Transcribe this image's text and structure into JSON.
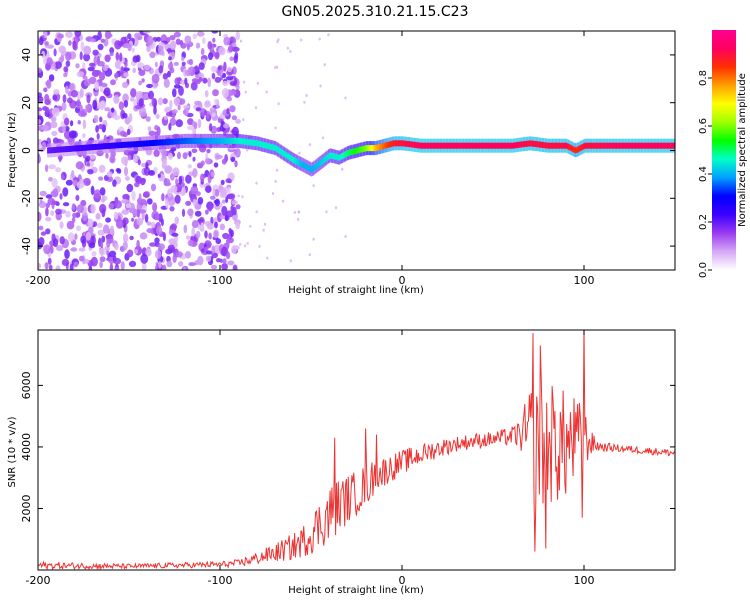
{
  "figure_title": "GN05.2025.310.21.15.C23",
  "chart_data": [
    {
      "type": "heatmap",
      "title": "GN05.2025.310.21.15.C23",
      "xlabel": "Height of straight line (km)",
      "ylabel": "Frequency (Hz)",
      "xlim": [
        -200,
        150
      ],
      "ylim": [
        -50,
        50
      ],
      "xticks": [
        -200,
        -100,
        0,
        100
      ],
      "yticks": [
        -40,
        -20,
        0,
        20,
        40
      ],
      "xtick_labels": [
        "-200",
        "-100",
        "0",
        "100"
      ],
      "ytick_labels": [
        "-40",
        "-20",
        "0",
        "20",
        "40"
      ],
      "colorbar": {
        "label": "Normalized spectral amplitude",
        "range": [
          0,
          1
        ],
        "ticks": [
          0.0,
          0.2,
          0.4,
          0.6,
          0.8
        ],
        "tick_labels": [
          "0.0",
          "0.2",
          "0.4",
          "0.6",
          "0.8"
        ],
        "colors": [
          "#ffffff",
          "#d6a8f5",
          "#9a3cf0",
          "#3c00ff",
          "#0000ff",
          "#00a0ff",
          "#00ffc8",
          "#00ff00",
          "#a0ff00",
          "#ffff00",
          "#ffa000",
          "#ff3000",
          "#ff0060",
          "#ff0090"
        ]
      },
      "ridge": {
        "x": [
          -195,
          -160,
          -140,
          -120,
          -100,
          -90,
          -80,
          -70,
          -60,
          -55,
          -50,
          -45,
          -40,
          -35,
          -30,
          -25,
          -20,
          -15,
          -10,
          -5,
          0,
          10,
          20,
          40,
          60,
          70,
          80,
          90,
          95,
          100,
          120,
          150
        ],
        "frequency": [
          0,
          2,
          3,
          4,
          4,
          4,
          3,
          1,
          -4,
          -6,
          -8,
          -5,
          -2,
          -3,
          -1,
          0,
          1,
          1,
          2,
          3,
          3,
          2,
          2,
          2,
          2,
          3,
          2,
          2,
          0,
          2,
          2,
          2
        ],
        "amplitude": [
          0.2,
          0.25,
          0.3,
          0.35,
          0.4,
          0.45,
          0.45,
          0.45,
          0.45,
          0.4,
          0.4,
          0.42,
          0.45,
          0.45,
          0.5,
          0.55,
          0.6,
          0.75,
          0.82,
          0.88,
          0.9,
          0.92,
          0.92,
          0.92,
          0.92,
          0.9,
          0.9,
          0.9,
          0.85,
          0.9,
          0.92,
          0.92
        ]
      },
      "noise_region_x": [
        -200,
        -90
      ],
      "noise_amplitude_range": [
        0.05,
        0.2
      ]
    },
    {
      "type": "line",
      "xlabel": "Height of straight line (km)",
      "ylabel": "SNR (10 * v/v)",
      "xlim": [
        -200,
        150
      ],
      "ylim": [
        0,
        7800
      ],
      "xticks": [
        -200,
        -100,
        0,
        100
      ],
      "yticks": [
        2000,
        4000,
        6000
      ],
      "xtick_labels": [
        "-200",
        "-100",
        "0",
        "100"
      ],
      "ytick_labels": [
        "2000",
        "4000",
        "6000"
      ],
      "series": [
        {
          "name": "SNR",
          "color": "#ee3333",
          "envelope_x": [
            -200,
            -150,
            -100,
            -90,
            -80,
            -70,
            -60,
            -55,
            -50,
            -45,
            -40,
            -35,
            -30,
            -25,
            -20,
            -15,
            -10,
            0,
            10,
            20,
            30,
            40,
            50,
            60,
            65,
            70,
            75,
            80,
            85,
            90,
            95,
            100,
            105,
            110,
            120,
            130,
            140,
            150
          ],
          "envelope_y": [
            150,
            120,
            180,
            220,
            380,
            550,
            750,
            900,
            1200,
            1500,
            1800,
            2100,
            2300,
            2500,
            2750,
            3000,
            3200,
            3500,
            3750,
            3950,
            4100,
            4200,
            4250,
            4350,
            4400,
            4400,
            4200,
            4100,
            4100,
            4000,
            4200,
            4300,
            4100,
            4000,
            3950,
            3900,
            3850,
            3800
          ],
          "noise_amplitude": [
            120,
            80,
            100,
            120,
            200,
            300,
            450,
            500,
            700,
            800,
            1000,
            900,
            800,
            750,
            700,
            600,
            500,
            400,
            350,
            300,
            250,
            250,
            250,
            300,
            500,
            1500,
            2500,
            2000,
            2000,
            1800,
            1500,
            1000,
            300,
            150,
            120,
            120,
            120,
            120
          ],
          "spikes": [
            {
              "x": -37,
              "y": 4300
            },
            {
              "x": -20,
              "y": 4600
            },
            {
              "x": -14,
              "y": 4400
            },
            {
              "x": 72,
              "y": 7700
            },
            {
              "x": 73,
              "y": 600
            },
            {
              "x": 76,
              "y": 7300
            },
            {
              "x": 79,
              "y": 700
            },
            {
              "x": 100,
              "y": 7900
            },
            {
              "x": 99,
              "y": 1700
            }
          ]
        }
      ]
    }
  ]
}
